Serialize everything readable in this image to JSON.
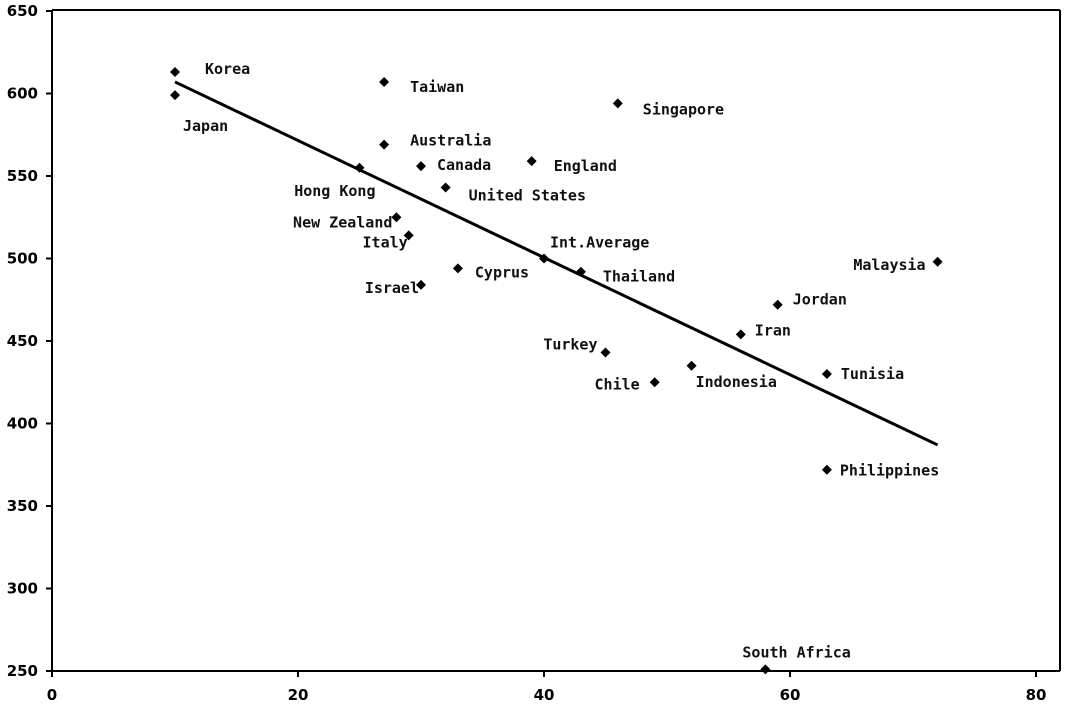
{
  "chart_data": {
    "type": "scatter",
    "title": "",
    "xlabel": "",
    "ylabel": "",
    "xlim": [
      0,
      85
    ],
    "ylim": [
      250,
      650
    ],
    "x_ticks": [
      0,
      20,
      40,
      60,
      80
    ],
    "y_ticks": [
      250,
      300,
      350,
      400,
      450,
      500,
      550,
      600,
      650
    ],
    "grid": false,
    "legend": "none",
    "marker_color": "#000000",
    "points": [
      {
        "label": "Korea",
        "x": 10,
        "y": 613
      },
      {
        "label": "Japan",
        "x": 10,
        "y": 599
      },
      {
        "label": "Taiwan",
        "x": 27,
        "y": 607
      },
      {
        "label": "Singapore",
        "x": 46,
        "y": 594
      },
      {
        "label": "Australia",
        "x": 27,
        "y": 569
      },
      {
        "label": "Canada",
        "x": 30,
        "y": 556
      },
      {
        "label": "England",
        "x": 39,
        "y": 559
      },
      {
        "label": "Hong Kong",
        "x": 25,
        "y": 555
      },
      {
        "label": "United States",
        "x": 32,
        "y": 543
      },
      {
        "label": "New Zealand",
        "x": 28,
        "y": 525
      },
      {
        "label": "Italy",
        "x": 29,
        "y": 514
      },
      {
        "label": "Int.Average",
        "x": 40,
        "y": 500
      },
      {
        "label": "Cyprus",
        "x": 33,
        "y": 494
      },
      {
        "label": "Thailand",
        "x": 43,
        "y": 492
      },
      {
        "label": "Israel",
        "x": 30,
        "y": 484
      },
      {
        "label": "Malaysia",
        "x": 72,
        "y": 498
      },
      {
        "label": "Jordan",
        "x": 59,
        "y": 472
      },
      {
        "label": "Iran",
        "x": 56,
        "y": 454
      },
      {
        "label": "Turkey",
        "x": 45,
        "y": 443
      },
      {
        "label": "Indonesia",
        "x": 52,
        "y": 435
      },
      {
        "label": "Chile",
        "x": 49,
        "y": 425
      },
      {
        "label": "Tunisia",
        "x": 63,
        "y": 430
      },
      {
        "label": "Philippines",
        "x": 63,
        "y": 372
      },
      {
        "label": "South Africa",
        "x": 58,
        "y": 251
      }
    ],
    "trendline": {
      "x": [
        10,
        72
      ],
      "y": [
        607,
        387
      ]
    }
  }
}
